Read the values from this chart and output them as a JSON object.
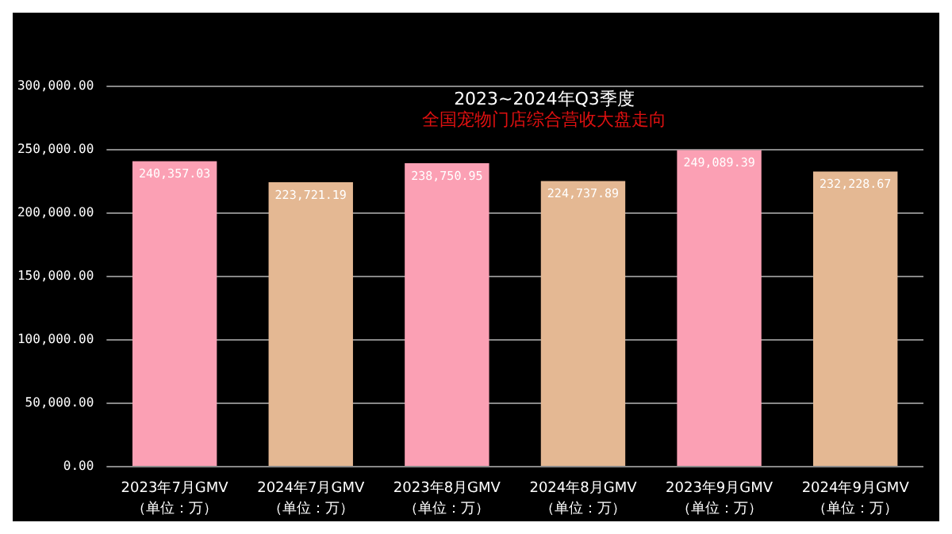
{
  "chart_data": {
    "type": "bar",
    "title": "2023~2024年Q3季度",
    "subtitle": "全国宠物门店综合营收大盘走向",
    "categories": [
      "2023年7月GMV\n（单位：万）",
      "2024年7月GMV\n（单位：万）",
      "2023年8月GMV\n（单位：万）",
      "2024年8月GMV\n（单位：万）",
      "2023年9月GMV\n（单位：万）",
      "2024年9月GMV\n（单位：万）"
    ],
    "values": [
      240357.03,
      223721.19,
      238750.95,
      224737.89,
      249089.39,
      232228.67
    ],
    "colors": [
      "#fba0b4",
      "#e4b893",
      "#fba0b4",
      "#e4b893",
      "#fba0b4",
      "#e4b893"
    ],
    "ylim": [
      0,
      300000
    ],
    "yticks": [
      {
        "value": 0,
        "label": "0.00"
      },
      {
        "value": 50000,
        "label": "50,000.00"
      },
      {
        "value": 100000,
        "label": "100,000.00"
      },
      {
        "value": 150000,
        "label": "150,000.00"
      },
      {
        "value": 200000,
        "label": "200,000.00"
      },
      {
        "value": 250000,
        "label": "250,000.00"
      },
      {
        "value": 300000,
        "label": "300,000.00"
      }
    ],
    "value_labels": [
      "240,357.03",
      "223,721.19",
      "238,750.95",
      "224,737.89",
      "249,089.39",
      "232,228.67"
    ],
    "grid": "y"
  }
}
